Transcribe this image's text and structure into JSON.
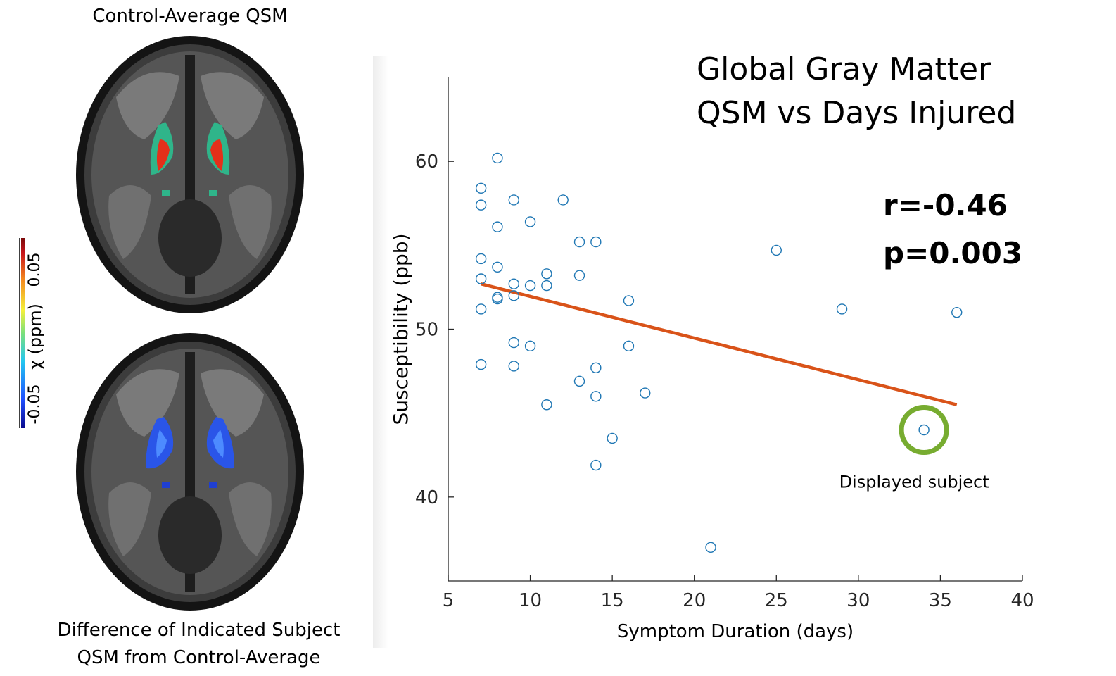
{
  "left_panel": {
    "top_title": "Control-Average QSM",
    "bottom_caption_line1": "Difference of Indicated Subject",
    "bottom_caption_line2": "QSM from Control-Average",
    "colorbar": {
      "label": "χ (ppm)",
      "max_label": "0.05",
      "min_label": "-0.05",
      "colors": [
        "#0a0a8c",
        "#1f4fff",
        "#22c6f0",
        "#7be07b",
        "#f4f03a",
        "#f48a1e",
        "#c8141b",
        "#7a0a0a"
      ]
    }
  },
  "chart_data": {
    "type": "scatter",
    "title_line1": "Global Gray Matter",
    "title_line2": "QSM  vs Days Injured",
    "xlabel": "Symptom Duration (days)",
    "ylabel": "Susceptibility (ppb)",
    "xlim": [
      5,
      40
    ],
    "ylim": [
      35,
      65
    ],
    "xticks": [
      5,
      10,
      15,
      20,
      25,
      30,
      35,
      40
    ],
    "yticks": [
      40,
      50,
      60
    ],
    "points": [
      {
        "x": 7,
        "y": 58.4
      },
      {
        "x": 7,
        "y": 57.4
      },
      {
        "x": 7,
        "y": 54.2
      },
      {
        "x": 7,
        "y": 53.0
      },
      {
        "x": 7,
        "y": 51.2
      },
      {
        "x": 7,
        "y": 47.9
      },
      {
        "x": 8,
        "y": 60.2
      },
      {
        "x": 8,
        "y": 56.1
      },
      {
        "x": 8,
        "y": 53.7
      },
      {
        "x": 8,
        "y": 51.8
      },
      {
        "x": 8,
        "y": 51.9
      },
      {
        "x": 9,
        "y": 57.7
      },
      {
        "x": 9,
        "y": 52.7
      },
      {
        "x": 9,
        "y": 52.0
      },
      {
        "x": 9,
        "y": 49.2
      },
      {
        "x": 9,
        "y": 47.8
      },
      {
        "x": 10,
        "y": 56.4
      },
      {
        "x": 10,
        "y": 52.6
      },
      {
        "x": 10,
        "y": 49.0
      },
      {
        "x": 11,
        "y": 53.3
      },
      {
        "x": 11,
        "y": 52.6
      },
      {
        "x": 11,
        "y": 45.5
      },
      {
        "x": 12,
        "y": 57.7
      },
      {
        "x": 13,
        "y": 55.2
      },
      {
        "x": 13,
        "y": 53.2
      },
      {
        "x": 13,
        "y": 46.9
      },
      {
        "x": 14,
        "y": 55.2
      },
      {
        "x": 14,
        "y": 47.7
      },
      {
        "x": 14,
        "y": 46.0
      },
      {
        "x": 14,
        "y": 41.9
      },
      {
        "x": 15,
        "y": 43.5
      },
      {
        "x": 16,
        "y": 51.7
      },
      {
        "x": 16,
        "y": 49.0
      },
      {
        "x": 17,
        "y": 46.2
      },
      {
        "x": 21,
        "y": 37.0
      },
      {
        "x": 25,
        "y": 54.7
      },
      {
        "x": 29,
        "y": 51.2
      },
      {
        "x": 34,
        "y": 44.0
      },
      {
        "x": 36,
        "y": 51.0
      }
    ],
    "fit_line": {
      "x": [
        7,
        36
      ],
      "y": [
        52.7,
        45.5
      ]
    },
    "marker_color": "#1f77b4",
    "fit_color": "#d95319",
    "highlight": {
      "x": 34,
      "y": 44.0,
      "label": "Displayed subject",
      "color": "#77ac30"
    },
    "stats_r": "r=-0.46",
    "stats_p": "p=0.003"
  }
}
